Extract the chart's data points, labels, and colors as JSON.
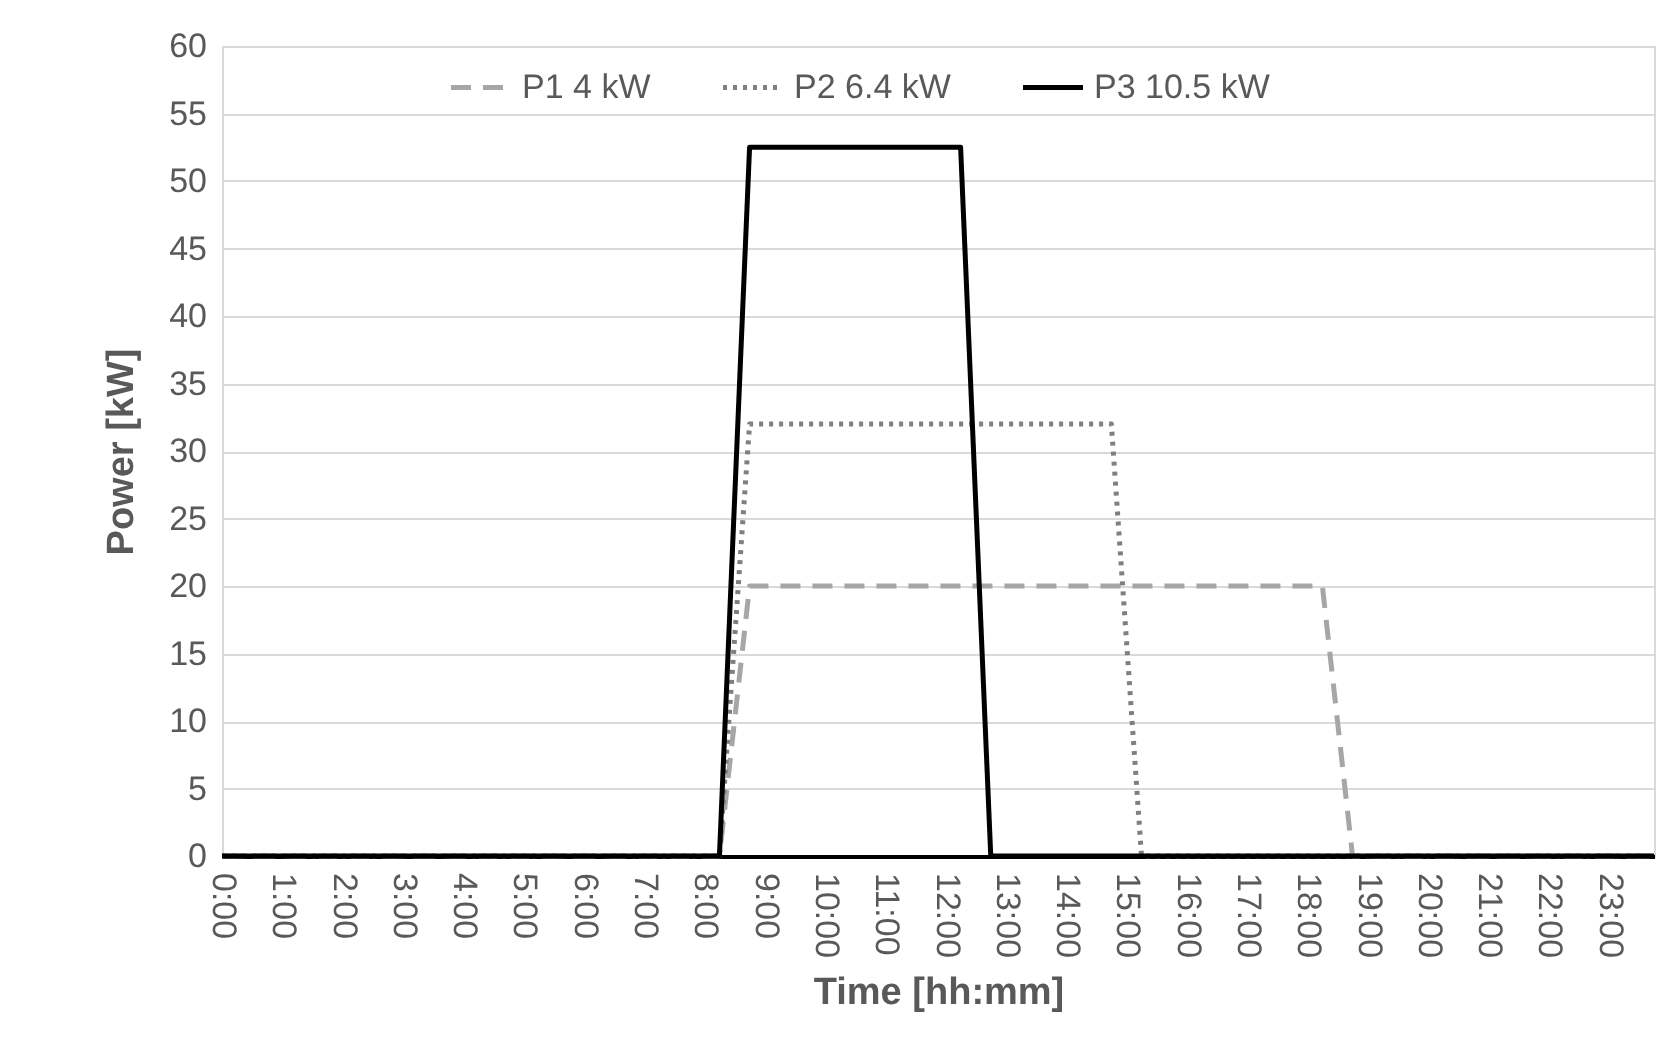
{
  "chart_data": {
    "type": "line",
    "xlabel": "Time [hh:mm]",
    "ylabel": "Power [kW]",
    "xlim": [
      0,
      23.75
    ],
    "ylim": [
      0,
      60
    ],
    "xticks": [
      {
        "value": 0,
        "label": "0:00"
      },
      {
        "value": 1,
        "label": "1:00"
      },
      {
        "value": 2,
        "label": "2:00"
      },
      {
        "value": 3,
        "label": "3:00"
      },
      {
        "value": 4,
        "label": "4:00"
      },
      {
        "value": 5,
        "label": "5:00"
      },
      {
        "value": 6,
        "label": "6:00"
      },
      {
        "value": 7,
        "label": "7:00"
      },
      {
        "value": 8,
        "label": "8:00"
      },
      {
        "value": 9,
        "label": "9:00"
      },
      {
        "value": 10,
        "label": "10:00"
      },
      {
        "value": 11,
        "label": "11:00"
      },
      {
        "value": 12,
        "label": "12:00"
      },
      {
        "value": 13,
        "label": "13:00"
      },
      {
        "value": 14,
        "label": "14:00"
      },
      {
        "value": 15,
        "label": "15:00"
      },
      {
        "value": 16,
        "label": "16:00"
      },
      {
        "value": 17,
        "label": "17:00"
      },
      {
        "value": 18,
        "label": "18:00"
      },
      {
        "value": 19,
        "label": "19:00"
      },
      {
        "value": 20,
        "label": "20:00"
      },
      {
        "value": 21,
        "label": "21:00"
      },
      {
        "value": 22,
        "label": "22:00"
      },
      {
        "value": 23,
        "label": "23:00"
      }
    ],
    "yticks": [
      0,
      5,
      10,
      15,
      20,
      25,
      30,
      35,
      40,
      45,
      50,
      55,
      60
    ],
    "grid": "y",
    "legend": "top",
    "marker": "none",
    "series": [
      {
        "name": "P1 4 kW",
        "color": "#a6a6a6",
        "line_style": "dashed",
        "x": [
          0,
          8.25,
          8.75,
          18.25,
          18.75,
          23.75
        ],
        "values": [
          0,
          0,
          20,
          20,
          0,
          0
        ]
      },
      {
        "name": "P2 6.4 kW",
        "color": "#7f7f7f",
        "line_style": "dotted",
        "x": [
          0,
          8.25,
          8.75,
          14.75,
          15.25,
          23.75
        ],
        "values": [
          0,
          0,
          32,
          32,
          0,
          0
        ]
      },
      {
        "name": "P3 10.5 kW",
        "color": "#000000",
        "line_style": "solid",
        "x": [
          0,
          8.25,
          8.75,
          12.25,
          12.75,
          23.75
        ],
        "values": [
          0,
          0,
          52.5,
          52.5,
          0,
          0
        ]
      }
    ]
  }
}
